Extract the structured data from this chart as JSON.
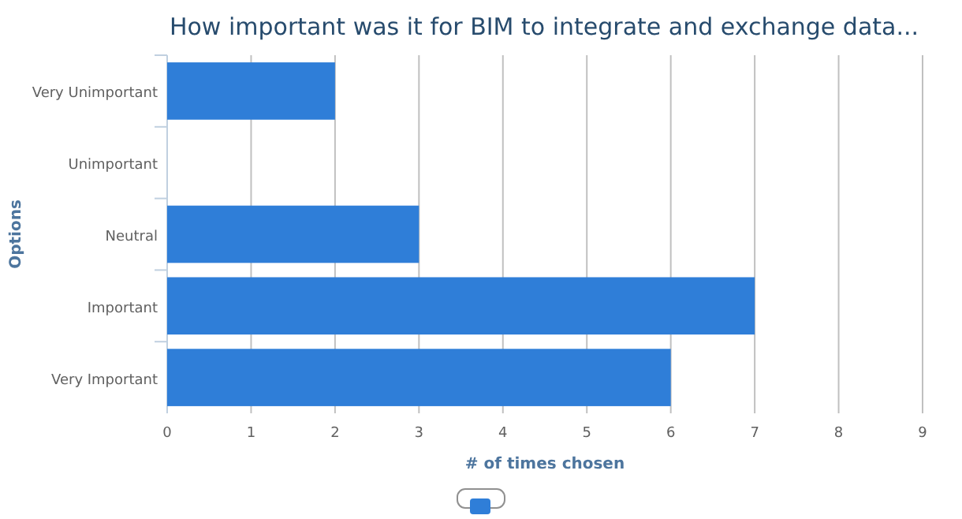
{
  "chart_data": {
    "type": "bar",
    "orientation": "horizontal",
    "title": "How important was it for BIM to integrate and exchange data...",
    "xlabel": "# of times chosen",
    "ylabel": "Options",
    "categories": [
      "Very Unimportant",
      "Unimportant",
      "Neutral",
      "Important",
      "Very Important"
    ],
    "series": [
      {
        "color": "#2f7ed8",
        "values": [
          2,
          0,
          3,
          7,
          6
        ]
      }
    ],
    "xlim": [
      0,
      9
    ],
    "xticks": [
      0,
      1,
      2,
      3,
      4,
      5,
      6,
      7,
      8,
      9
    ],
    "grid": "x"
  }
}
